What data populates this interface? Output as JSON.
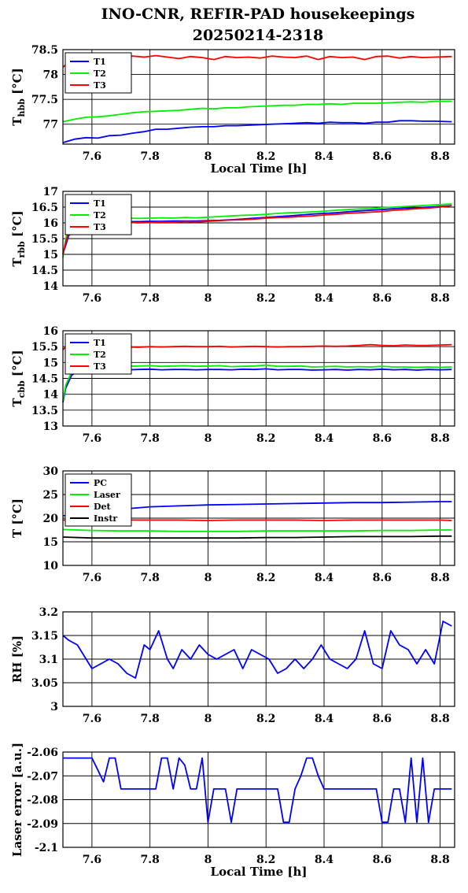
{
  "title": {
    "line1": "INO-CNR, REFIR-PAD housekeepings",
    "line2": "20250214-2318"
  },
  "chart_data": [
    {
      "type": "line",
      "title": "",
      "ylabel_main": "T",
      "ylabel_sub": "hbb",
      "ylabel_unit": " [°C]",
      "xlabel": "Local Time [h]",
      "xlim": [
        7.5,
        8.85
      ],
      "ylim": [
        76.6,
        78.5
      ],
      "xticks": [
        7.6,
        7.8,
        8,
        8.2,
        8.4,
        8.6,
        8.8
      ],
      "yticks": [
        "78.5",
        "78",
        "77.5",
        "77"
      ],
      "ytick_values": [
        78.5,
        78,
        77.5,
        77
      ],
      "grid": true,
      "legend": "top-left",
      "x": [
        7.5,
        7.54,
        7.58,
        7.62,
        7.66,
        7.7,
        7.74,
        7.78,
        7.82,
        7.86,
        7.9,
        7.94,
        7.98,
        8.02,
        8.06,
        8.1,
        8.14,
        8.18,
        8.22,
        8.26,
        8.3,
        8.34,
        8.38,
        8.42,
        8.46,
        8.5,
        8.54,
        8.58,
        8.62,
        8.66,
        8.7,
        8.74,
        8.78,
        8.84
      ],
      "series": [
        {
          "name": "T1",
          "color": "#0000ff",
          "values": [
            76.63,
            76.7,
            76.73,
            76.72,
            76.77,
            76.78,
            76.82,
            76.85,
            76.9,
            76.9,
            76.92,
            76.94,
            76.95,
            76.95,
            76.97,
            76.97,
            76.98,
            76.99,
            77.0,
            77.01,
            77.02,
            77.03,
            77.02,
            77.04,
            77.03,
            77.03,
            77.02,
            77.04,
            77.04,
            77.07,
            77.07,
            77.06,
            77.06,
            77.05
          ]
        },
        {
          "name": "T2",
          "color": "#00ee00",
          "values": [
            77.05,
            77.1,
            77.14,
            77.15,
            77.17,
            77.2,
            77.23,
            77.25,
            77.26,
            77.27,
            77.28,
            77.3,
            77.32,
            77.31,
            77.33,
            77.33,
            77.35,
            77.36,
            77.37,
            77.38,
            77.38,
            77.4,
            77.4,
            77.41,
            77.4,
            77.42,
            77.42,
            77.42,
            77.43,
            77.44,
            77.45,
            77.44,
            77.46,
            77.46
          ]
        },
        {
          "name": "T3",
          "color": "#ff0000",
          "values": [
            78.15,
            78.32,
            78.38,
            78.34,
            78.36,
            78.32,
            78.37,
            78.35,
            78.38,
            78.35,
            78.32,
            78.36,
            78.34,
            78.3,
            78.36,
            78.34,
            78.35,
            78.33,
            78.37,
            78.35,
            78.34,
            78.37,
            78.3,
            78.36,
            78.34,
            78.35,
            78.3,
            78.36,
            78.37,
            78.33,
            78.36,
            78.34,
            78.35,
            78.36
          ]
        }
      ]
    },
    {
      "type": "line",
      "title": "",
      "ylabel_main": "T",
      "ylabel_sub": "rbb",
      "ylabel_unit": " [°C]",
      "xlabel": "",
      "xlim": [
        7.5,
        8.85
      ],
      "ylim": [
        14,
        17
      ],
      "xticks": [
        7.6,
        7.8,
        8,
        8.2,
        8.4,
        8.6,
        8.8
      ],
      "yticks": [
        "17",
        "16.5",
        "16",
        "15.5",
        "15",
        "14.5",
        "14"
      ],
      "ytick_values": [
        17,
        16.5,
        16,
        15.5,
        15,
        14.5,
        14
      ],
      "grid": true,
      "legend": "top-left",
      "x": [
        7.5,
        7.51,
        7.52,
        7.56,
        7.6,
        7.64,
        7.68,
        7.72,
        7.76,
        7.8,
        7.84,
        7.88,
        7.92,
        7.96,
        8.0,
        8.04,
        8.08,
        8.12,
        8.16,
        8.2,
        8.24,
        8.28,
        8.32,
        8.36,
        8.4,
        8.44,
        8.48,
        8.52,
        8.56,
        8.6,
        8.64,
        8.68,
        8.72,
        8.76,
        8.8,
        8.84
      ],
      "series": [
        {
          "name": "T1",
          "color": "#0000ff",
          "values": [
            15.0,
            15.3,
            15.6,
            15.9,
            16.0,
            16.02,
            16.03,
            16.04,
            16.04,
            16.05,
            16.05,
            16.06,
            16.06,
            16.06,
            16.07,
            16.08,
            16.1,
            16.12,
            16.15,
            16.17,
            16.2,
            16.22,
            16.25,
            16.28,
            16.3,
            16.32,
            16.35,
            16.38,
            16.4,
            16.42,
            16.45,
            16.47,
            16.48,
            16.5,
            16.52,
            16.55
          ]
        },
        {
          "name": "T2",
          "color": "#00ee00",
          "values": [
            14.9,
            15.5,
            15.9,
            16.05,
            16.1,
            16.12,
            16.13,
            16.15,
            16.14,
            16.15,
            16.16,
            16.15,
            16.17,
            16.16,
            16.18,
            16.2,
            16.22,
            16.24,
            16.25,
            16.27,
            16.3,
            16.32,
            16.33,
            16.35,
            16.37,
            16.4,
            16.42,
            16.44,
            16.45,
            16.48,
            16.5,
            16.52,
            16.54,
            16.56,
            16.58,
            16.6
          ]
        },
        {
          "name": "T3",
          "color": "#ff0000",
          "values": [
            15.0,
            15.4,
            15.7,
            15.95,
            16.02,
            16.01,
            16.0,
            16.02,
            16.0,
            16.01,
            16.03,
            16.02,
            16.04,
            16.03,
            16.05,
            16.07,
            16.09,
            16.1,
            16.12,
            16.15,
            16.17,
            16.18,
            16.2,
            16.22,
            16.25,
            16.27,
            16.3,
            16.32,
            16.34,
            16.36,
            16.4,
            16.42,
            16.45,
            16.47,
            16.5,
            16.55
          ]
        }
      ]
    },
    {
      "type": "line",
      "title": "",
      "ylabel_main": "T",
      "ylabel_sub": "cbb",
      "ylabel_unit": " [°C]",
      "xlabel": "",
      "xlim": [
        7.5,
        8.85
      ],
      "ylim": [
        13,
        16
      ],
      "xticks": [
        7.6,
        7.8,
        8,
        8.2,
        8.4,
        8.6,
        8.8
      ],
      "yticks": [
        "16",
        "15.5",
        "15",
        "14.5",
        "14",
        "13.5",
        "13"
      ],
      "ytick_values": [
        16,
        15.5,
        15,
        14.5,
        14,
        13.5,
        13
      ],
      "grid": true,
      "legend": "top-left",
      "x": [
        7.5,
        7.51,
        7.53,
        7.56,
        7.6,
        7.64,
        7.68,
        7.72,
        7.76,
        7.8,
        7.84,
        7.88,
        7.92,
        7.96,
        8.0,
        8.04,
        8.08,
        8.12,
        8.16,
        8.2,
        8.24,
        8.28,
        8.32,
        8.36,
        8.4,
        8.44,
        8.48,
        8.52,
        8.56,
        8.6,
        8.64,
        8.68,
        8.72,
        8.76,
        8.8,
        8.84
      ],
      "series": [
        {
          "name": "T1",
          "color": "#0000ff",
          "values": [
            13.75,
            14.2,
            14.6,
            14.78,
            14.8,
            14.78,
            14.8,
            14.77,
            14.78,
            14.79,
            14.77,
            14.78,
            14.78,
            14.77,
            14.78,
            14.78,
            14.77,
            14.79,
            14.78,
            14.8,
            14.77,
            14.78,
            14.78,
            14.76,
            14.77,
            14.78,
            14.76,
            14.78,
            14.77,
            14.79,
            14.77,
            14.78,
            14.76,
            14.78,
            14.77,
            14.78
          ]
        },
        {
          "name": "T2",
          "color": "#00ee00",
          "values": [
            13.8,
            14.3,
            14.7,
            14.88,
            14.9,
            14.89,
            14.9,
            14.88,
            14.89,
            14.9,
            14.88,
            14.89,
            14.9,
            14.88,
            14.89,
            14.9,
            14.87,
            14.88,
            14.89,
            14.92,
            14.88,
            14.88,
            14.89,
            14.86,
            14.87,
            14.88,
            14.86,
            14.87,
            14.86,
            14.88,
            14.86,
            14.86,
            14.85,
            14.86,
            14.85,
            14.86
          ]
        },
        {
          "name": "T3",
          "color": "#ff0000",
          "values": [
            15.4,
            15.5,
            15.52,
            15.53,
            15.52,
            15.5,
            15.51,
            15.49,
            15.48,
            15.5,
            15.49,
            15.5,
            15.51,
            15.5,
            15.5,
            15.51,
            15.49,
            15.5,
            15.51,
            15.5,
            15.49,
            15.5,
            15.5,
            15.51,
            15.52,
            15.51,
            15.52,
            15.54,
            15.56,
            15.54,
            15.53,
            15.55,
            15.54,
            15.54,
            15.55,
            15.56
          ]
        }
      ]
    },
    {
      "type": "line",
      "title": "",
      "ylabel_main": "T [°C]",
      "ylabel_sub": "",
      "ylabel_unit": "",
      "xlabel": "",
      "xlim": [
        7.5,
        8.85
      ],
      "ylim": [
        10,
        30
      ],
      "xticks": [
        7.6,
        7.8,
        8,
        8.2,
        8.4,
        8.6,
        8.8
      ],
      "yticks": [
        "30",
        "25",
        "20",
        "15",
        "10"
      ],
      "ytick_values": [
        30,
        25,
        20,
        15,
        10
      ],
      "grid": true,
      "legend": "top-left",
      "x": [
        7.5,
        7.6,
        7.7,
        7.8,
        7.9,
        8.0,
        8.1,
        8.2,
        8.3,
        8.4,
        8.5,
        8.6,
        8.7,
        8.8,
        8.84
      ],
      "series": [
        {
          "name": "PC",
          "color": "#0000ff",
          "values": [
            20.5,
            21.3,
            21.9,
            22.4,
            22.6,
            22.8,
            22.9,
            23.0,
            23.1,
            23.2,
            23.3,
            23.3,
            23.4,
            23.5,
            23.5
          ]
        },
        {
          "name": "Laser",
          "color": "#00ee00",
          "values": [
            17.6,
            17.4,
            17.3,
            17.3,
            17.2,
            17.2,
            17.2,
            17.3,
            17.3,
            17.3,
            17.3,
            17.4,
            17.4,
            17.5,
            17.5
          ]
        },
        {
          "name": "Det",
          "color": "#ff0000",
          "values": [
            19.6,
            19.6,
            19.6,
            19.6,
            19.6,
            19.5,
            19.6,
            19.6,
            19.6,
            19.5,
            19.6,
            19.6,
            19.6,
            19.6,
            19.5
          ]
        },
        {
          "name": "Instr",
          "color": "#000000",
          "values": [
            16.0,
            15.8,
            15.8,
            15.8,
            15.8,
            15.8,
            15.8,
            15.9,
            15.9,
            16.0,
            16.1,
            16.1,
            16.1,
            16.2,
            16.2
          ]
        }
      ]
    },
    {
      "type": "line",
      "title": "",
      "ylabel_main": "RH [%]",
      "ylabel_sub": "",
      "ylabel_unit": "",
      "xlabel": "",
      "xlim": [
        7.5,
        8.85
      ],
      "ylim": [
        3.0,
        3.2
      ],
      "xticks": [
        7.6,
        7.8,
        8,
        8.2,
        8.4,
        8.6,
        8.8
      ],
      "yticks": [
        "3.2",
        "3.15",
        "3.1",
        "3.05",
        "3"
      ],
      "ytick_values": [
        3.2,
        3.15,
        3.1,
        3.05,
        3.0
      ],
      "grid": true,
      "legend": "none",
      "x": [
        7.5,
        7.52,
        7.55,
        7.58,
        7.6,
        7.63,
        7.66,
        7.69,
        7.72,
        7.75,
        7.78,
        7.8,
        7.83,
        7.86,
        7.88,
        7.91,
        7.94,
        7.97,
        8.0,
        8.03,
        8.06,
        8.09,
        8.12,
        8.15,
        8.18,
        8.21,
        8.24,
        8.27,
        8.3,
        8.33,
        8.36,
        8.39,
        8.42,
        8.45,
        8.48,
        8.51,
        8.54,
        8.57,
        8.6,
        8.63,
        8.66,
        8.69,
        8.72,
        8.75,
        8.78,
        8.81,
        8.84
      ],
      "series": [
        {
          "name": "RH",
          "color": "#0000ff",
          "values": [
            3.15,
            3.14,
            3.13,
            3.1,
            3.08,
            3.09,
            3.1,
            3.09,
            3.07,
            3.06,
            3.13,
            3.12,
            3.16,
            3.1,
            3.08,
            3.12,
            3.1,
            3.13,
            3.11,
            3.1,
            3.11,
            3.12,
            3.08,
            3.12,
            3.11,
            3.1,
            3.07,
            3.08,
            3.1,
            3.08,
            3.1,
            3.13,
            3.1,
            3.09,
            3.08,
            3.1,
            3.16,
            3.09,
            3.08,
            3.16,
            3.13,
            3.12,
            3.09,
            3.12,
            3.09,
            3.18,
            3.17
          ]
        }
      ]
    },
    {
      "type": "line",
      "title": "",
      "ylabel_main": "Laser error [a.u.]",
      "ylabel_sub": "",
      "ylabel_unit": "",
      "xlabel": "Local Time [h]",
      "xlim": [
        7.5,
        8.85
      ],
      "ylim": [
        -2.1,
        -2.06
      ],
      "xticks": [
        7.6,
        7.8,
        8,
        8.2,
        8.4,
        8.6,
        8.8
      ],
      "yticks": [
        "-2.06",
        "-2.07",
        "-2.08",
        "-2.09",
        "-2.1"
      ],
      "ytick_values": [
        -2.06,
        -2.07,
        -2.08,
        -2.09,
        -2.1
      ],
      "grid": true,
      "legend": "none",
      "x": [
        7.5,
        7.52,
        7.54,
        7.56,
        7.58,
        7.6,
        7.62,
        7.64,
        7.66,
        7.68,
        7.7,
        7.72,
        7.74,
        7.76,
        7.78,
        7.8,
        7.82,
        7.84,
        7.86,
        7.88,
        7.9,
        7.92,
        7.94,
        7.96,
        7.98,
        8.0,
        8.02,
        8.04,
        8.06,
        8.08,
        8.1,
        8.12,
        8.14,
        8.16,
        8.18,
        8.2,
        8.22,
        8.24,
        8.26,
        8.28,
        8.3,
        8.32,
        8.34,
        8.36,
        8.38,
        8.4,
        8.42,
        8.44,
        8.46,
        8.48,
        8.5,
        8.52,
        8.54,
        8.56,
        8.58,
        8.6,
        8.62,
        8.64,
        8.66,
        8.68,
        8.7,
        8.72,
        8.74,
        8.76,
        8.78,
        8.8,
        8.82,
        8.84
      ],
      "series": [
        {
          "name": "Laser error",
          "color": "#0000ff",
          "values": [
            -2.0625,
            -2.0625,
            -2.0625,
            -2.0625,
            -2.0625,
            -2.0625,
            -2.0675,
            -2.0725,
            -2.0625,
            -2.0625,
            -2.0755,
            -2.0755,
            -2.0755,
            -2.0755,
            -2.0755,
            -2.0755,
            -2.0755,
            -2.0625,
            -2.0625,
            -2.0755,
            -2.0625,
            -2.0655,
            -2.0755,
            -2.0755,
            -2.0625,
            -2.0895,
            -2.0755,
            -2.0755,
            -2.0755,
            -2.0895,
            -2.0755,
            -2.0755,
            -2.0755,
            -2.0755,
            -2.0755,
            -2.0755,
            -2.0755,
            -2.0755,
            -2.0895,
            -2.0895,
            -2.0755,
            -2.07,
            -2.0625,
            -2.0625,
            -2.07,
            -2.0755,
            -2.0755,
            -2.0755,
            -2.0755,
            -2.0755,
            -2.0755,
            -2.0755,
            -2.0755,
            -2.0755,
            -2.0755,
            -2.0895,
            -2.0895,
            -2.0755,
            -2.0755,
            -2.0895,
            -2.0625,
            -2.0895,
            -2.0625,
            -2.0895,
            -2.0755,
            -2.0755,
            -2.0755,
            -2.0755
          ]
        }
      ]
    }
  ]
}
